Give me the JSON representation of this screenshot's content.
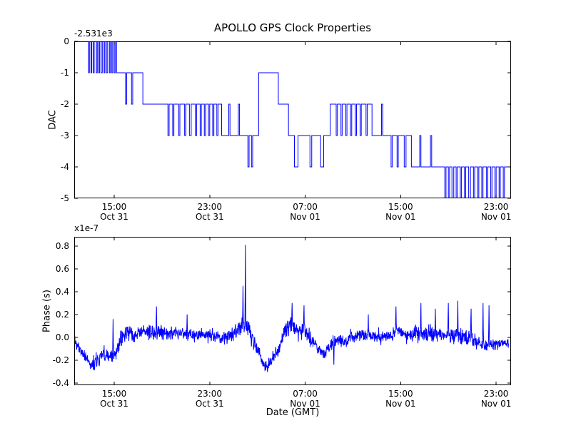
{
  "figure": {
    "background": "#ffffff",
    "line_color": "#0000ff",
    "axis_color": "#000000"
  },
  "chart_data": [
    {
      "type": "line",
      "name": "dac",
      "drawstyle": "steps-post",
      "title": "APOLLO GPS Clock Properties",
      "ylabel": "DAC",
      "y_offset_text": "-2.531e3",
      "ylim": [
        -5,
        0
      ],
      "yticks": [
        {
          "value": 0,
          "label": "0"
        },
        {
          "value": -1,
          "label": "-1"
        },
        {
          "value": -2,
          "label": "-2"
        },
        {
          "value": -3,
          "label": "-3"
        },
        {
          "value": -4,
          "label": "-4"
        },
        {
          "value": -5,
          "label": "-5"
        }
      ],
      "xlim": [
        11.65,
        48.25
      ],
      "x_end": 48.05,
      "xticks": [
        {
          "value": 15,
          "time": "15:00",
          "date": "Oct 31"
        },
        {
          "value": 23,
          "time": "23:00",
          "date": "Oct 31"
        },
        {
          "value": 31,
          "time": "07:00",
          "date": "Nov 01"
        },
        {
          "value": 39,
          "time": "15:00",
          "date": "Nov 01"
        },
        {
          "value": 47,
          "time": "23:00",
          "date": "Nov 01"
        }
      ],
      "steps": [
        [
          11.7,
          0
        ],
        [
          12.85,
          -1
        ],
        [
          12.92,
          0
        ],
        [
          13.05,
          -1
        ],
        [
          13.12,
          0
        ],
        [
          13.25,
          -1
        ],
        [
          13.32,
          0
        ],
        [
          13.5,
          -1
        ],
        [
          13.58,
          0
        ],
        [
          13.7,
          -1
        ],
        [
          13.78,
          0
        ],
        [
          13.9,
          -1
        ],
        [
          14.0,
          0
        ],
        [
          14.15,
          -1
        ],
        [
          14.22,
          0
        ],
        [
          14.35,
          -1
        ],
        [
          14.45,
          0
        ],
        [
          14.6,
          -1
        ],
        [
          14.68,
          0
        ],
        [
          14.8,
          -1
        ],
        [
          14.88,
          0
        ],
        [
          15.0,
          -1
        ],
        [
          15.08,
          0
        ],
        [
          15.2,
          -1
        ],
        [
          15.95,
          -2
        ],
        [
          16.05,
          -1
        ],
        [
          16.45,
          -2
        ],
        [
          16.55,
          -1
        ],
        [
          17.4,
          -2
        ],
        [
          19.5,
          -3
        ],
        [
          19.6,
          -2
        ],
        [
          19.9,
          -3
        ],
        [
          20.0,
          -2
        ],
        [
          20.4,
          -3
        ],
        [
          20.5,
          -2
        ],
        [
          20.9,
          -3
        ],
        [
          21.0,
          -2
        ],
        [
          21.3,
          -3
        ],
        [
          21.45,
          -2
        ],
        [
          21.8,
          -3
        ],
        [
          21.9,
          -2
        ],
        [
          22.2,
          -3
        ],
        [
          22.3,
          -2
        ],
        [
          22.55,
          -3
        ],
        [
          22.65,
          -2
        ],
        [
          22.9,
          -3
        ],
        [
          23.0,
          -2
        ],
        [
          23.25,
          -3
        ],
        [
          23.35,
          -2
        ],
        [
          23.6,
          -3
        ],
        [
          23.7,
          -2
        ],
        [
          24.0,
          -3
        ],
        [
          24.6,
          -2
        ],
        [
          24.7,
          -3
        ],
        [
          25.4,
          -2
        ],
        [
          25.5,
          -3
        ],
        [
          26.2,
          -4
        ],
        [
          26.3,
          -3
        ],
        [
          26.5,
          -4
        ],
        [
          26.6,
          -3
        ],
        [
          27.1,
          -1
        ],
        [
          28.75,
          -2
        ],
        [
          29.6,
          -3
        ],
        [
          30.1,
          -4
        ],
        [
          30.4,
          -3
        ],
        [
          31.4,
          -4
        ],
        [
          31.55,
          -3
        ],
        [
          32.3,
          -4
        ],
        [
          32.55,
          -3
        ],
        [
          33.1,
          -2
        ],
        [
          33.6,
          -3
        ],
        [
          33.7,
          -2
        ],
        [
          34.0,
          -3
        ],
        [
          34.1,
          -2
        ],
        [
          34.4,
          -3
        ],
        [
          34.5,
          -2
        ],
        [
          34.8,
          -3
        ],
        [
          34.9,
          -2
        ],
        [
          35.2,
          -3
        ],
        [
          35.3,
          -2
        ],
        [
          35.6,
          -3
        ],
        [
          35.7,
          -2
        ],
        [
          36.1,
          -3
        ],
        [
          36.2,
          -2
        ],
        [
          36.6,
          -3
        ],
        [
          37.4,
          -2
        ],
        [
          37.5,
          -3
        ],
        [
          38.2,
          -4
        ],
        [
          38.3,
          -3
        ],
        [
          38.7,
          -4
        ],
        [
          38.8,
          -3
        ],
        [
          39.3,
          -4
        ],
        [
          39.45,
          -3
        ],
        [
          39.9,
          -4
        ],
        [
          40.6,
          -3
        ],
        [
          40.7,
          -4
        ],
        [
          41.5,
          -3
        ],
        [
          41.6,
          -4
        ],
        [
          42.7,
          -5
        ],
        [
          42.8,
          -4
        ],
        [
          43.0,
          -5
        ],
        [
          43.1,
          -4
        ],
        [
          43.3,
          -5
        ],
        [
          43.45,
          -4
        ],
        [
          43.65,
          -5
        ],
        [
          43.75,
          -4
        ],
        [
          44.0,
          -5
        ],
        [
          44.1,
          -4
        ],
        [
          44.35,
          -5
        ],
        [
          44.45,
          -4
        ],
        [
          44.7,
          -5
        ],
        [
          44.85,
          -4
        ],
        [
          45.1,
          -5
        ],
        [
          45.2,
          -4
        ],
        [
          45.45,
          -5
        ],
        [
          45.55,
          -4
        ],
        [
          45.8,
          -5
        ],
        [
          45.9,
          -4
        ],
        [
          46.2,
          -5
        ],
        [
          46.3,
          -4
        ],
        [
          46.55,
          -5
        ],
        [
          46.65,
          -4
        ],
        [
          46.9,
          -5
        ],
        [
          47.0,
          -4
        ],
        [
          47.25,
          -5
        ],
        [
          47.35,
          -4
        ],
        [
          47.6,
          -5
        ],
        [
          47.7,
          -4
        ],
        [
          47.95,
          -4
        ]
      ]
    },
    {
      "type": "line",
      "name": "phase",
      "ylabel": "Phase (s)",
      "y_offset_text": "x1e-7",
      "xlabel": "Date (GMT)",
      "ylim": [
        -0.42,
        0.88
      ],
      "yticks": [
        {
          "value": 0.8,
          "label": "0.8"
        },
        {
          "value": 0.6,
          "label": "0.6"
        },
        {
          "value": 0.4,
          "label": "0.4"
        },
        {
          "value": 0.2,
          "label": "0.2"
        },
        {
          "value": 0.0,
          "label": "0.0"
        },
        {
          "value": -0.2,
          "label": "-0.2"
        },
        {
          "value": -0.4,
          "label": "-0.4"
        }
      ],
      "xlim": [
        11.65,
        48.25
      ],
      "x_end": 48.05,
      "xticks": [
        {
          "value": 15,
          "time": "15:00",
          "date": "Oct 31"
        },
        {
          "value": 23,
          "time": "23:00",
          "date": "Oct 31"
        },
        {
          "value": 31,
          "time": "07:00",
          "date": "Nov 01"
        },
        {
          "value": 39,
          "time": "15:00",
          "date": "Nov 01"
        },
        {
          "value": 47,
          "time": "23:00",
          "date": "Nov 01"
        }
      ],
      "trend": [
        [
          11.7,
          -0.04,
          0.05
        ],
        [
          12.3,
          -0.12,
          0.06
        ],
        [
          13.0,
          -0.2,
          0.06
        ],
        [
          13.6,
          -0.17,
          0.07
        ],
        [
          14.2,
          -0.12,
          0.06
        ],
        [
          15.0,
          -0.12,
          0.05
        ],
        [
          15.6,
          -0.02,
          0.07
        ],
        [
          16.2,
          0.04,
          0.08
        ],
        [
          16.8,
          0.02,
          0.06
        ],
        [
          17.5,
          0.03,
          0.05
        ],
        [
          18.3,
          0.05,
          0.06
        ],
        [
          19.0,
          0.04,
          0.07
        ],
        [
          19.8,
          0.02,
          0.06
        ],
        [
          20.6,
          0.0,
          0.06
        ],
        [
          21.4,
          -0.02,
          0.06
        ],
        [
          22.2,
          0.0,
          0.05
        ],
        [
          23.0,
          -0.03,
          0.06
        ],
        [
          23.8,
          0.0,
          0.06
        ],
        [
          24.6,
          0.02,
          0.06
        ],
        [
          25.3,
          0.05,
          0.07
        ],
        [
          25.9,
          0.12,
          0.1
        ],
        [
          26.4,
          0.02,
          0.08
        ],
        [
          27.0,
          -0.12,
          0.06
        ],
        [
          27.6,
          -0.26,
          0.05
        ],
        [
          28.1,
          -0.23,
          0.05
        ],
        [
          28.7,
          -0.12,
          0.06
        ],
        [
          29.3,
          0.02,
          0.07
        ],
        [
          29.9,
          0.12,
          0.08
        ],
        [
          30.4,
          0.08,
          0.08
        ],
        [
          31.0,
          0.05,
          0.08
        ],
        [
          31.6,
          -0.02,
          0.07
        ],
        [
          32.2,
          -0.1,
          0.06
        ],
        [
          32.7,
          -0.13,
          0.06
        ],
        [
          33.2,
          -0.05,
          0.05
        ],
        [
          33.8,
          -0.03,
          0.05
        ],
        [
          34.4,
          -0.05,
          0.06
        ],
        [
          35.0,
          0.0,
          0.07
        ],
        [
          35.6,
          0.04,
          0.07
        ],
        [
          36.2,
          0.02,
          0.06
        ],
        [
          37.0,
          0.04,
          0.06
        ],
        [
          37.8,
          0.03,
          0.06
        ],
        [
          38.6,
          0.05,
          0.07
        ],
        [
          39.4,
          0.04,
          0.06
        ],
        [
          40.2,
          0.06,
          0.07
        ],
        [
          41.0,
          0.04,
          0.06
        ],
        [
          41.8,
          0.05,
          0.07
        ],
        [
          42.6,
          0.03,
          0.06
        ],
        [
          43.4,
          0.05,
          0.07
        ],
        [
          44.2,
          0.03,
          0.07
        ],
        [
          45.0,
          0.0,
          0.06
        ],
        [
          45.8,
          -0.02,
          0.05
        ],
        [
          46.6,
          -0.04,
          0.05
        ],
        [
          47.4,
          -0.04,
          0.05
        ],
        [
          48.1,
          -0.05,
          0.05
        ]
      ],
      "spikes": [
        [
          14.9,
          0.16
        ],
        [
          18.55,
          0.27
        ],
        [
          21.1,
          0.2
        ],
        [
          25.78,
          0.45
        ],
        [
          26.0,
          0.81
        ],
        [
          29.9,
          0.3
        ],
        [
          30.9,
          0.28
        ],
        [
          33.4,
          -0.24
        ],
        [
          36.3,
          0.2
        ],
        [
          38.6,
          0.27
        ],
        [
          40.7,
          0.3
        ],
        [
          41.9,
          0.25
        ],
        [
          43.0,
          0.3
        ],
        [
          43.8,
          0.32
        ],
        [
          44.9,
          0.25
        ],
        [
          45.9,
          0.3
        ],
        [
          46.4,
          0.28
        ]
      ],
      "noise": {
        "seed": 1234,
        "points_per_hour": 44
      }
    }
  ]
}
